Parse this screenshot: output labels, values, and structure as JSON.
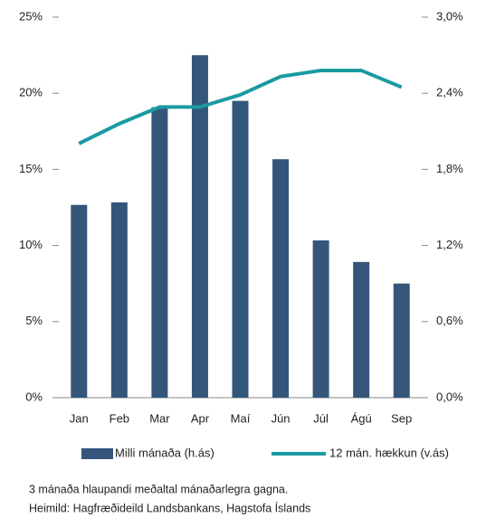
{
  "chart_data": {
    "type": "bar_line",
    "categories": [
      "Jan",
      "Feb",
      "Mar",
      "Apr",
      "Maí",
      "Jún",
      "Júl",
      "Ágú",
      "Sep"
    ],
    "series": [
      {
        "name": "Milli mánaða (h.ás)",
        "type": "bar",
        "axis": "y2",
        "color": "#34567a",
        "values": [
          1.52,
          1.54,
          2.29,
          2.7,
          2.34,
          1.88,
          1.24,
          1.07,
          0.9
        ]
      },
      {
        "name": "12 mán. hækkun (v.ás)",
        "type": "line",
        "axis": "y",
        "color": "#1a9aa0",
        "values": [
          16.7,
          18.0,
          19.1,
          19.1,
          19.9,
          21.1,
          21.5,
          21.5,
          20.4
        ]
      }
    ],
    "ylim": [
      0,
      25
    ],
    "yticks": [
      {
        "value": 0,
        "label": "0%"
      },
      {
        "value": 5,
        "label": "5%"
      },
      {
        "value": 10,
        "label": "10%"
      },
      {
        "value": 15,
        "label": "15%"
      },
      {
        "value": 20,
        "label": "20%"
      },
      {
        "value": 25,
        "label": "25%"
      }
    ],
    "y2lim": [
      0,
      3
    ],
    "y2ticks": [
      {
        "value": 0,
        "label": "0,0%"
      },
      {
        "value": 0.6,
        "label": "0,6%"
      },
      {
        "value": 1.2,
        "label": "1,2%"
      },
      {
        "value": 1.8,
        "label": "1,8%"
      },
      {
        "value": 2.4,
        "label": "2,4%"
      },
      {
        "value": 3,
        "label": "3,0%"
      }
    ],
    "notes": [
      "3 mánaða hlaupandi meðaltal mánaðarlegra gagna.",
      "Heimild: Hagfræðideild Landsbankans, Hagstofa Íslands"
    ]
  }
}
